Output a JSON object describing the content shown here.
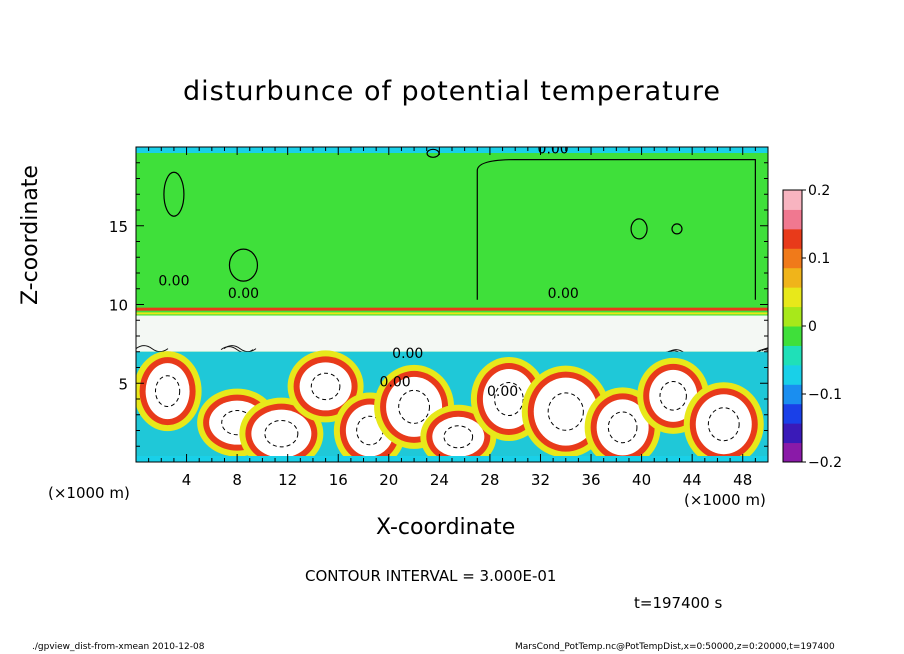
{
  "title": "disturbunce of potential temperature",
  "chart_data": {
    "type": "heatmap",
    "title": "disturbunce of potential temperature",
    "xlabel": "X-coordinate",
    "ylabel": "Z-coordinate",
    "x_unit": "(×1000 m)",
    "xlim": [
      0,
      50
    ],
    "ylim": [
      0,
      20
    ],
    "x_ticks": [
      "4",
      "8",
      "12",
      "16",
      "20",
      "24",
      "28",
      "32",
      "36",
      "40",
      "44",
      "48"
    ],
    "y_ticks": [
      "5",
      "10",
      "15"
    ],
    "colorbar": {
      "range": [
        -0.2,
        0.2
      ],
      "tick_labels": [
        "0.2",
        "0.1",
        "0",
        "−0.1",
        "−0.2"
      ]
    },
    "contour_labels": [
      "0.00",
      "0.00",
      "0.00",
      "0.00",
      "0.00",
      "0.00",
      "0.00"
    ],
    "contour_interval_text": "CONTOUR INTERVAL = 3.000E-01",
    "time_text": "t=197400 s"
  },
  "footer": {
    "left": "./gpview_dist-from-xmean 2010-12-08",
    "right": "MarsCond_PotTemp.nc@PotTempDist,x=0:50000,z=0:20000,t=197400"
  },
  "colors": {
    "background_field": "#3fe03a",
    "colorbar": [
      "#8a1aa8",
      "#3a1ab8",
      "#1a40e8",
      "#1a8ef0",
      "#19d0e8",
      "#1fe0b8",
      "#3fe03a",
      "#a8e81a",
      "#e8e81a",
      "#f0b41a",
      "#f07a1a",
      "#e83a1a",
      "#f07890",
      "#f8b4c0"
    ]
  }
}
